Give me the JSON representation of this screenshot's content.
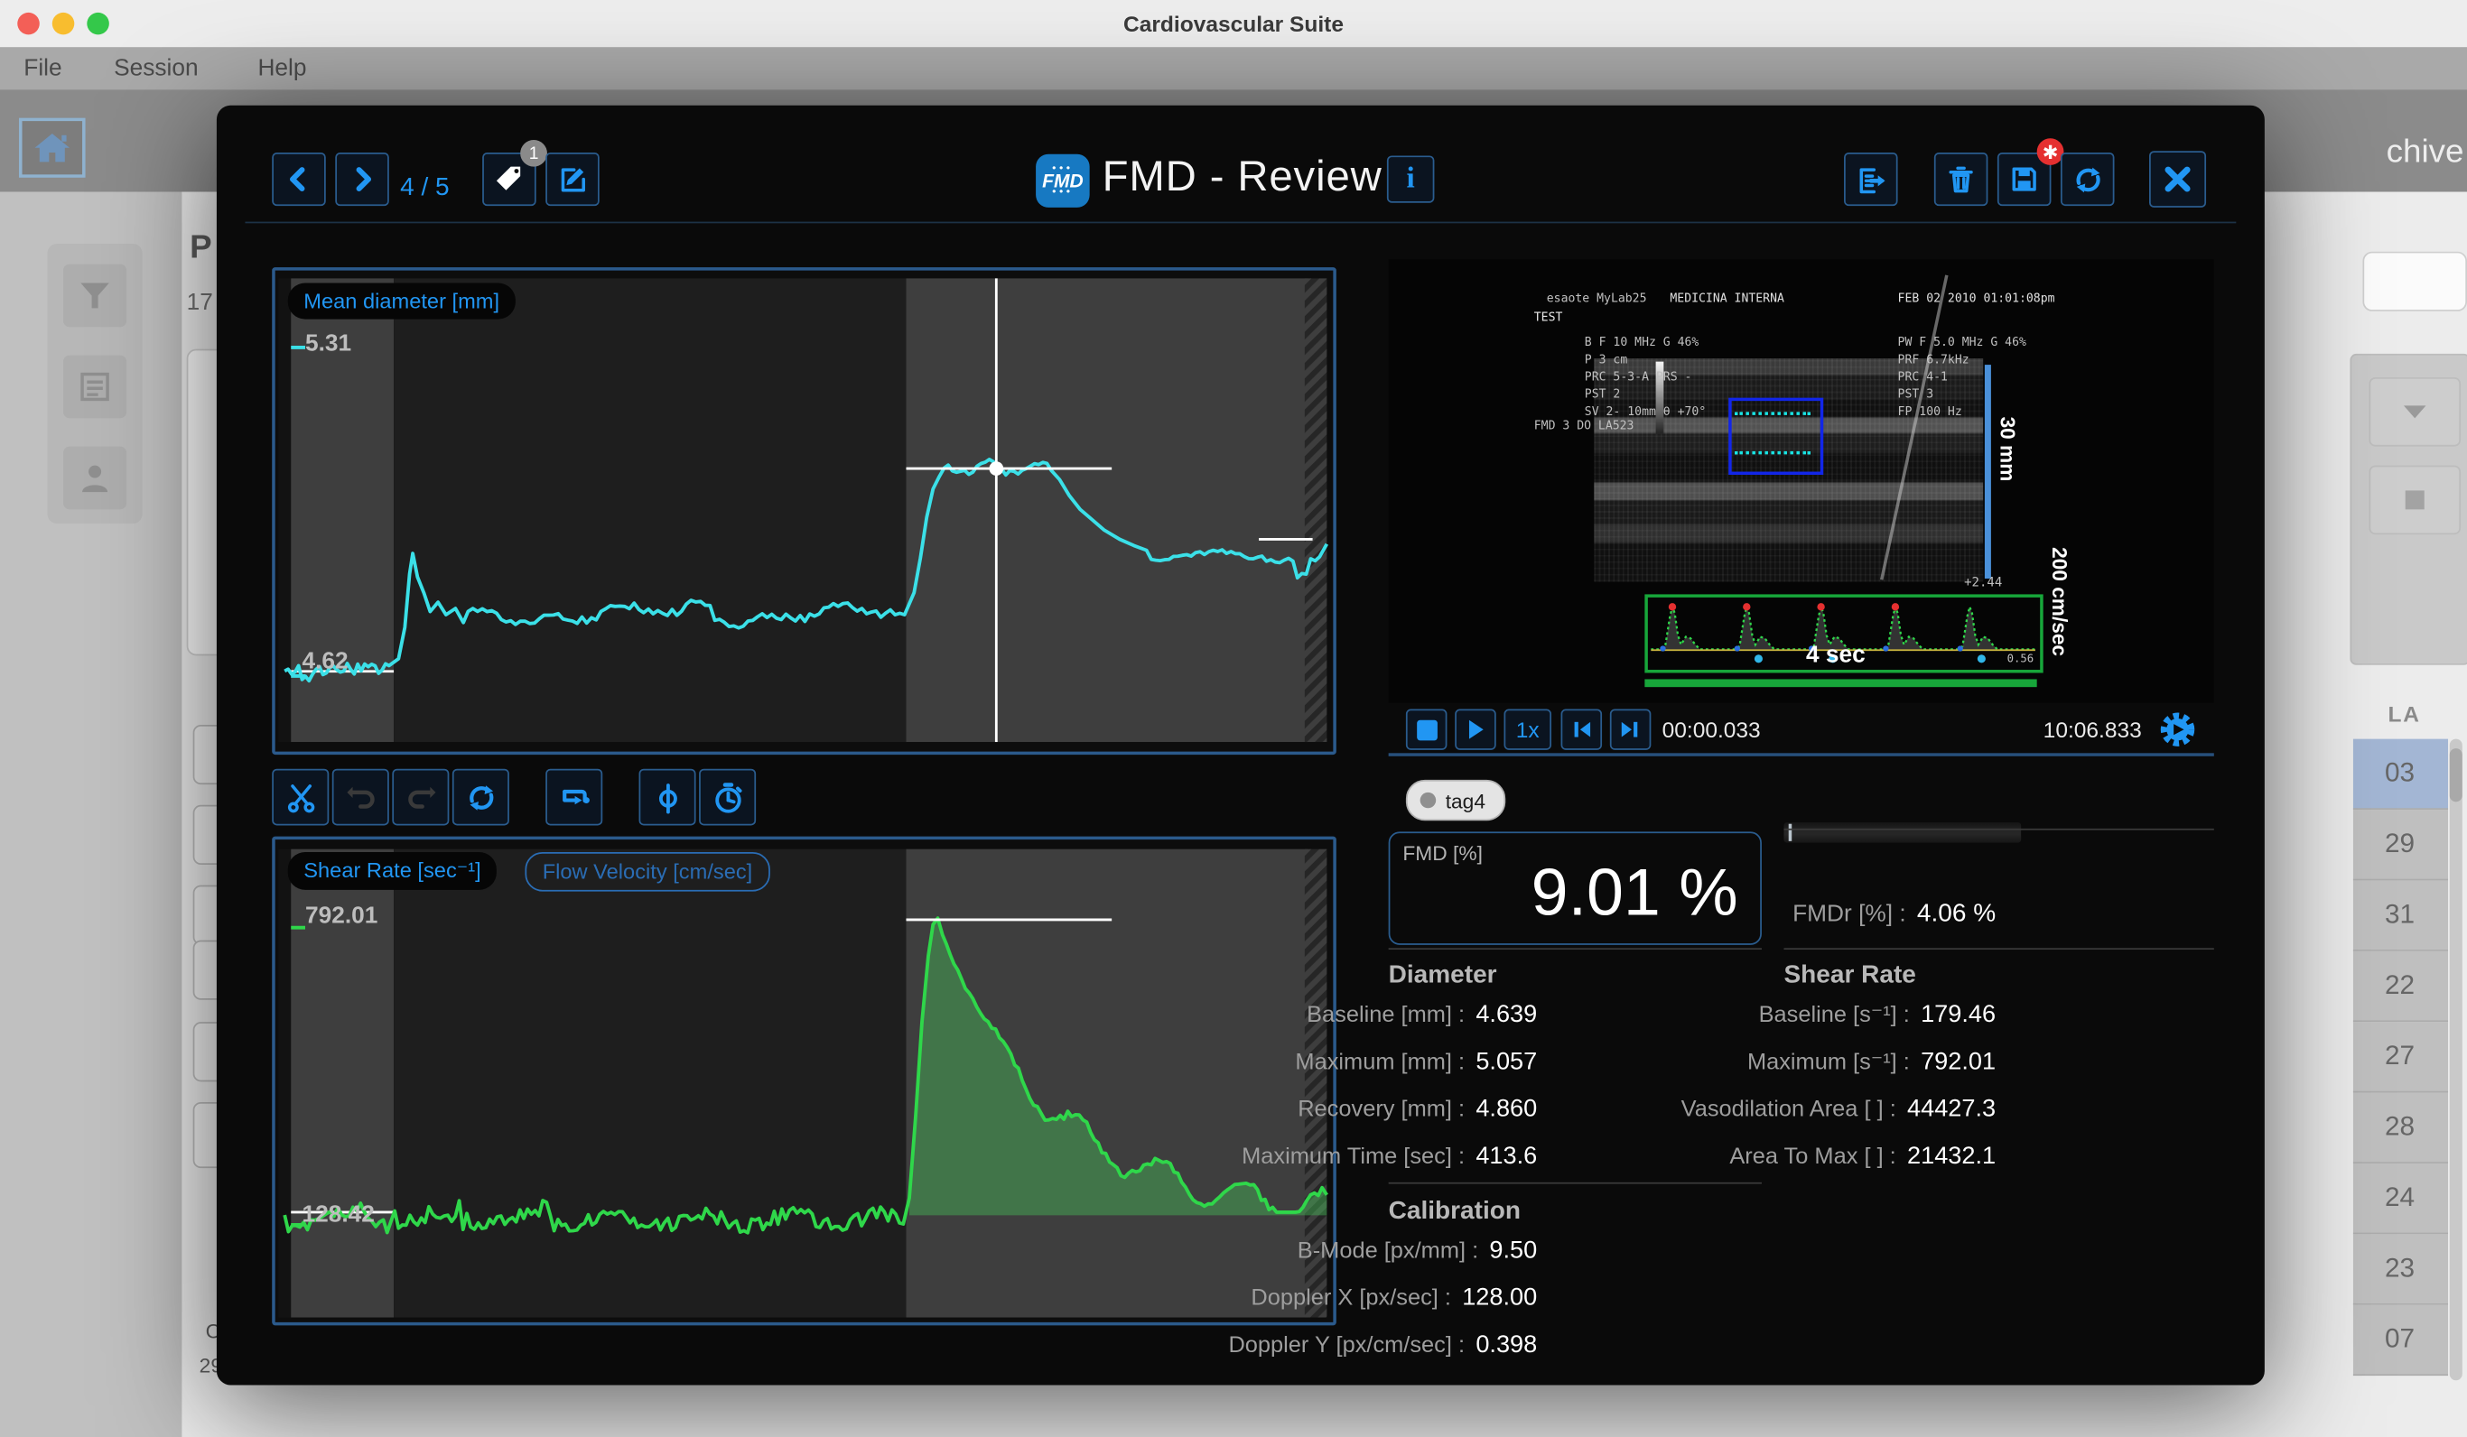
{
  "win": {
    "title": "Cardiovascular Suite",
    "menus": [
      "File",
      "Session",
      "Help"
    ]
  },
  "bg": {
    "archive_text": "chive",
    "heading": "P",
    "count": "17",
    "bottom_left_1": "C",
    "bottom_left_2": "29",
    "table": {
      "header": "LA",
      "rows": [
        "03",
        "29",
        "31",
        "22",
        "27",
        "28",
        "24",
        "23",
        "07"
      ],
      "selected_row": "03"
    }
  },
  "dlg": {
    "title": "FMD - Review",
    "logo_text": "FMD",
    "nav": {
      "counter": "4 / 5",
      "tag_badge": "1",
      "save_badge": "✱"
    },
    "charts": {
      "mean": {
        "label": "Mean diameter [mm]",
        "ymax": "5.31",
        "ybase": "4.62",
        "line_color": "#3be0e8"
      },
      "shear": {
        "tab_active": "Shear Rate [sec⁻¹]",
        "tab_inactive": "Flow Velocity [cm/sec]",
        "ymax": "792.01",
        "ybase": "128.42",
        "line_color": "#2fd74a",
        "fill_color": "rgba(70,200,90,0.40)"
      }
    },
    "ultrasound": {
      "vendor": "esaote MyLab25",
      "dept": "MEDICINA INTERNA",
      "datetime": "FEB 02 2010 01:01:08pm",
      "patient": "TEST",
      "b_params": "B F   10 MHz G 46%\nP      3   cm\nPRC  5-3-A  PRS -\nPST 2\nSV  2- 10mm θ +70°",
      "pw_params": "PW F   5.0 MHz G 46%\n   PRF  6.7kHz\n   PRC 4-1\n   PST 3\n   FP   100 Hz",
      "probe": "FMD 3 DO LA523",
      "scale_depth": "30 mm",
      "scale_velocity": "200 cm/sec",
      "scale_time": "4 sec",
      "marker_value": "+2.44",
      "marker_value2": "0.56"
    },
    "playback": {
      "speed": "1x",
      "current_time": "00:00.033",
      "total_time": "10:06.833"
    },
    "tag": "tag4",
    "fmd": {
      "label": "FMD [%]",
      "value": "9.01 %"
    },
    "fmdr": {
      "label": "FMDr [%] :",
      "value": "4.06 %"
    },
    "diameter": {
      "title": "Diameter",
      "rows": [
        {
          "label": "Baseline [mm] :",
          "value": "4.639"
        },
        {
          "label": "Maximum [mm] :",
          "value": "5.057"
        },
        {
          "label": "Recovery [mm] :",
          "value": "4.860"
        },
        {
          "label": "Maximum Time [sec] :",
          "value": "413.6"
        }
      ]
    },
    "shear_rate": {
      "title": "Shear Rate",
      "rows": [
        {
          "label": "Baseline [s⁻¹] :",
          "value": "179.46"
        },
        {
          "label": "Maximum [s⁻¹] :",
          "value": "792.01"
        },
        {
          "label": "Vasodilation Area [ ] :",
          "value": "44427.3"
        },
        {
          "label": "Area To Max [ ] :",
          "value": "21432.1"
        }
      ]
    },
    "calibration": {
      "title": "Calibration",
      "rows": [
        {
          "label": "B-Mode [px/mm] :",
          "value": "9.50"
        },
        {
          "label": "Doppler X [px/sec] :",
          "value": "128.00"
        },
        {
          "label": "Doppler Y [px/cm/sec] :",
          "value": "0.398"
        }
      ]
    },
    "accent": "#2196f3"
  }
}
